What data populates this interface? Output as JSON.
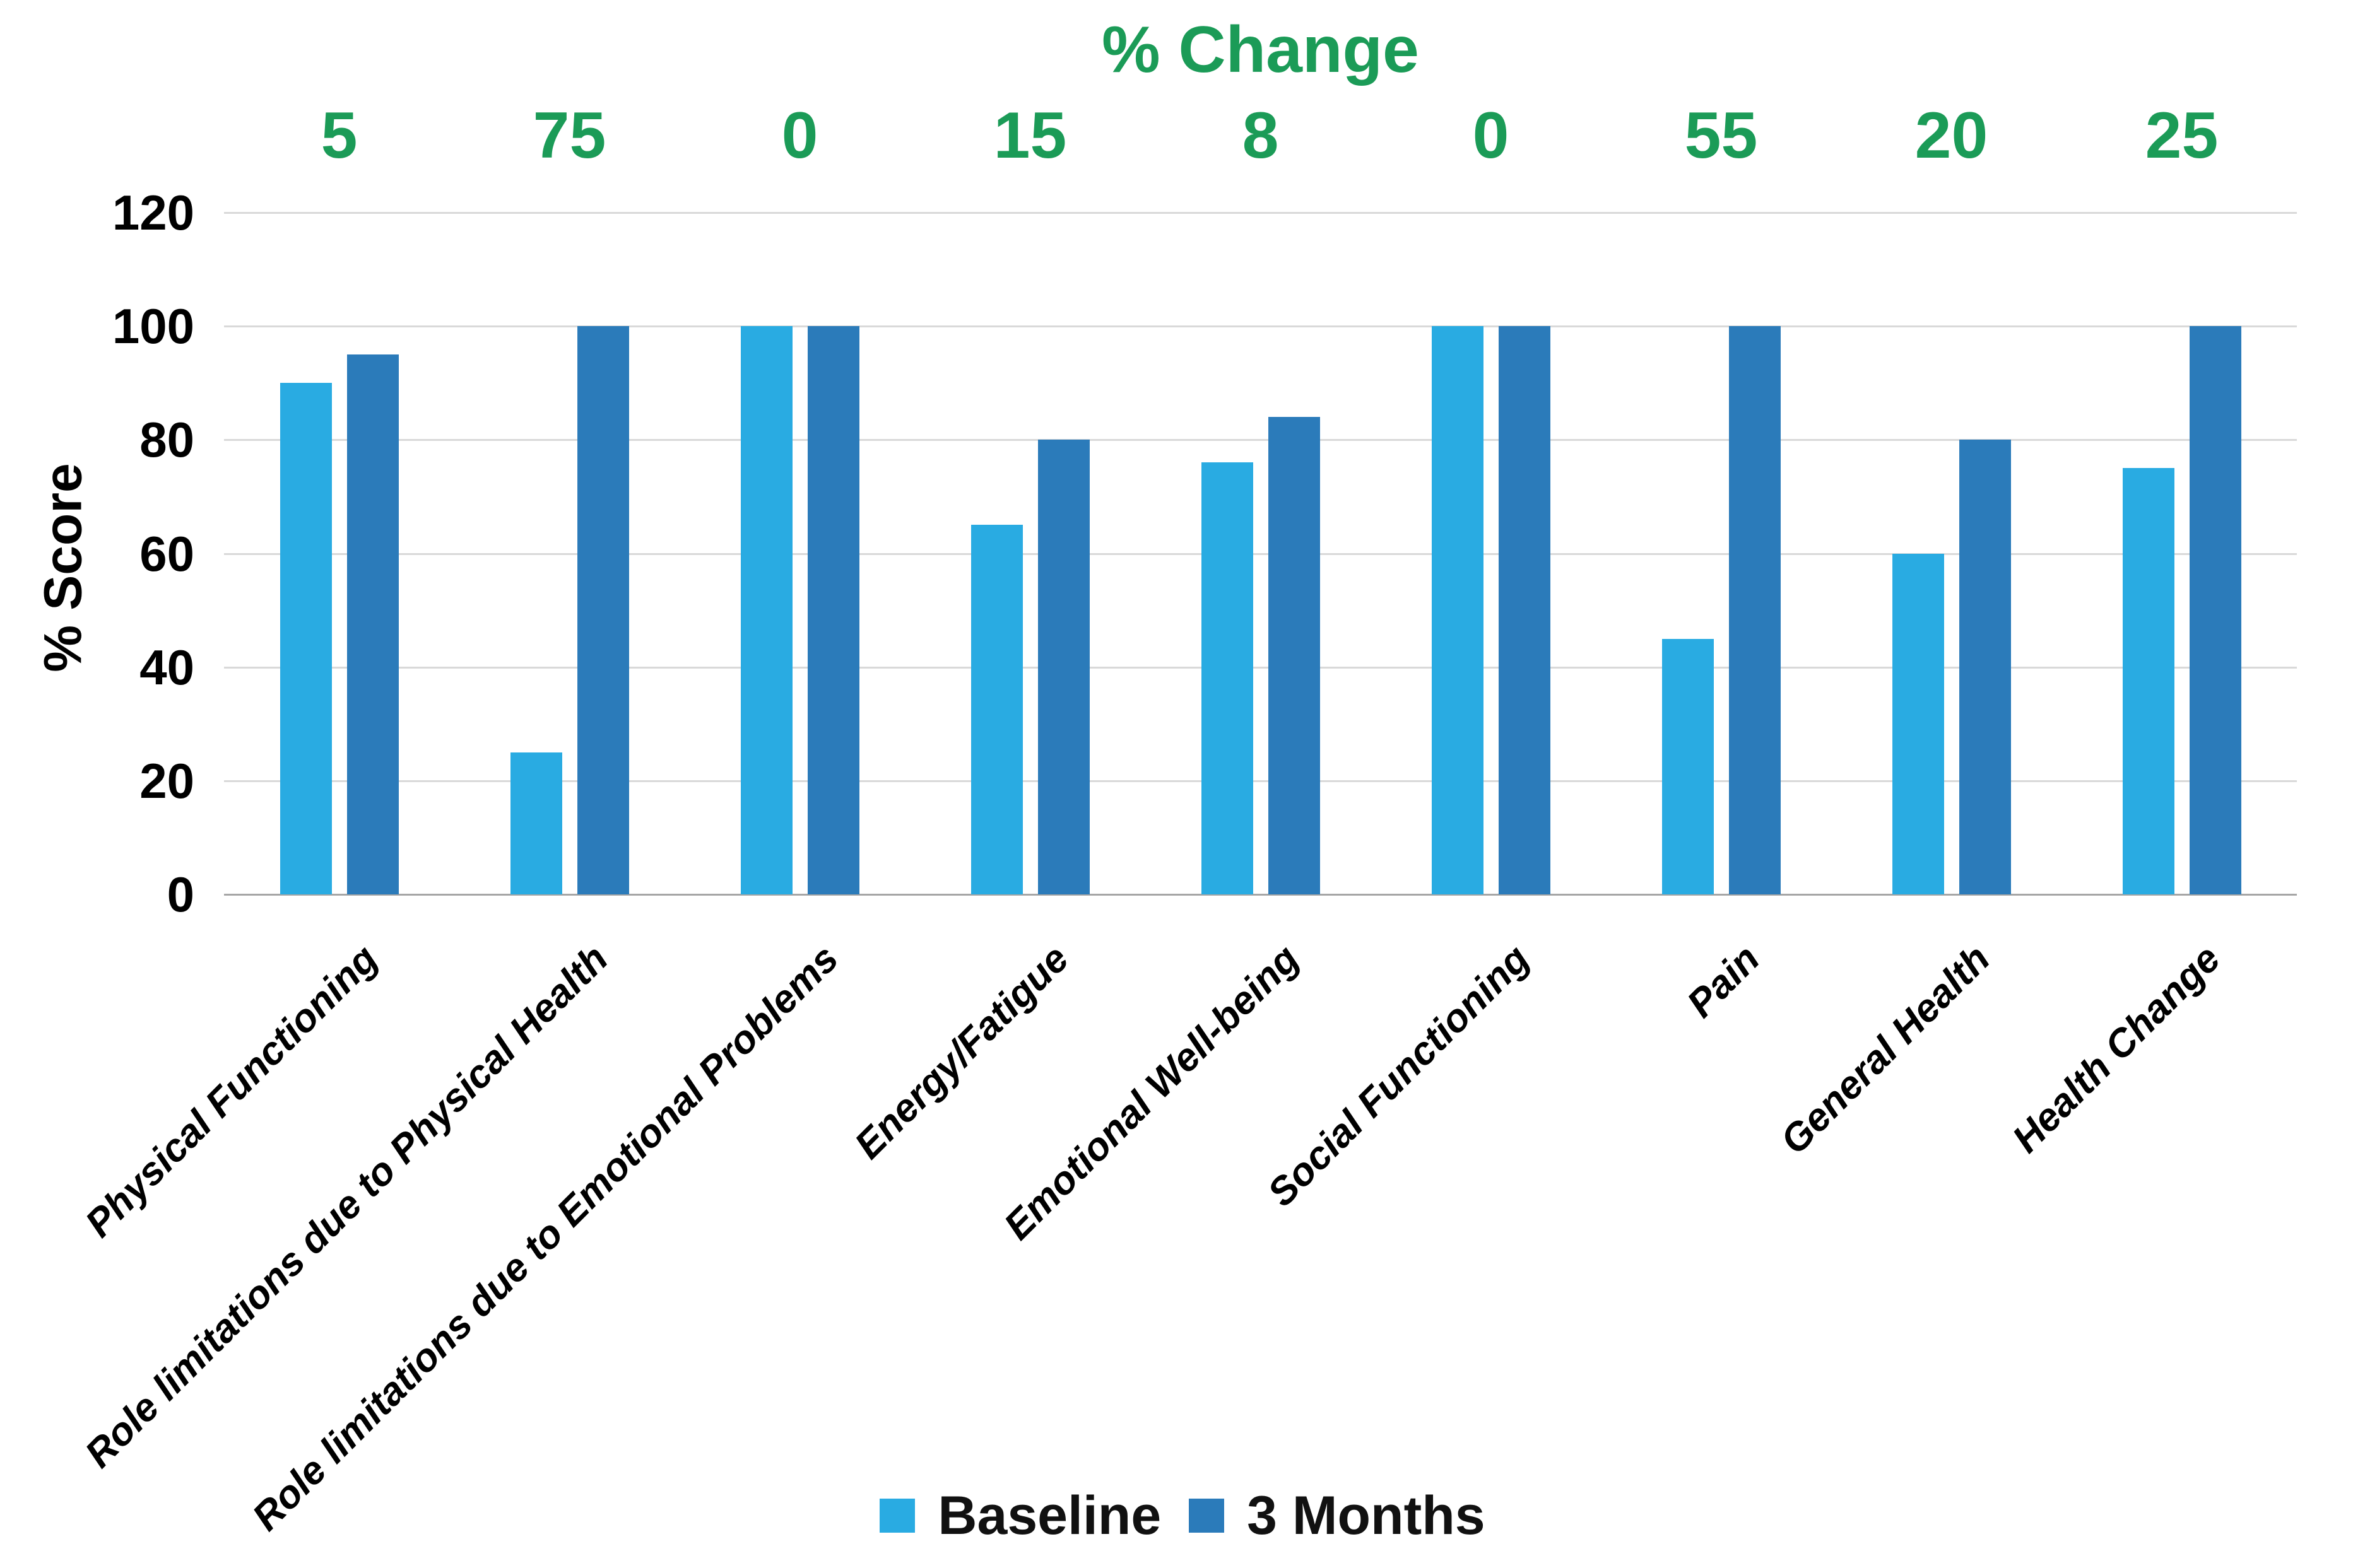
{
  "chart_data": {
    "type": "bar",
    "top_axis_title": "% Change",
    "ylabel": "% Score",
    "categories": [
      "Physical Functioning",
      "Role limitations due to Physical Health",
      "Role limitations due to Emotional Problems",
      "Energy/Fatigue",
      "Emotional Well-being",
      "Social Functioning",
      "Pain",
      "General Health",
      "Health Change"
    ],
    "series": [
      {
        "name": "Baseline",
        "color": "#29ABE2",
        "values": [
          90,
          25,
          100,
          65,
          76,
          100,
          45,
          60,
          75
        ]
      },
      {
        "name": "3 Months",
        "color": "#2B7BBA",
        "values": [
          95,
          100,
          100,
          80,
          84,
          100,
          100,
          80,
          100
        ]
      }
    ],
    "pct_change": [
      5,
      75,
      0,
      15,
      8,
      0,
      55,
      20,
      25
    ],
    "y_ticks": [
      0,
      20,
      40,
      60,
      80,
      100,
      120
    ],
    "ylim": [
      0,
      120
    ],
    "grid": true,
    "legend_position": "bottom"
  },
  "colors": {
    "background": "#FFFFFF",
    "pct_change_green": "#1B9B57",
    "gridline": "#D9D9D9",
    "zero_axis_line": "#A6A6A6",
    "text": "#000000"
  }
}
